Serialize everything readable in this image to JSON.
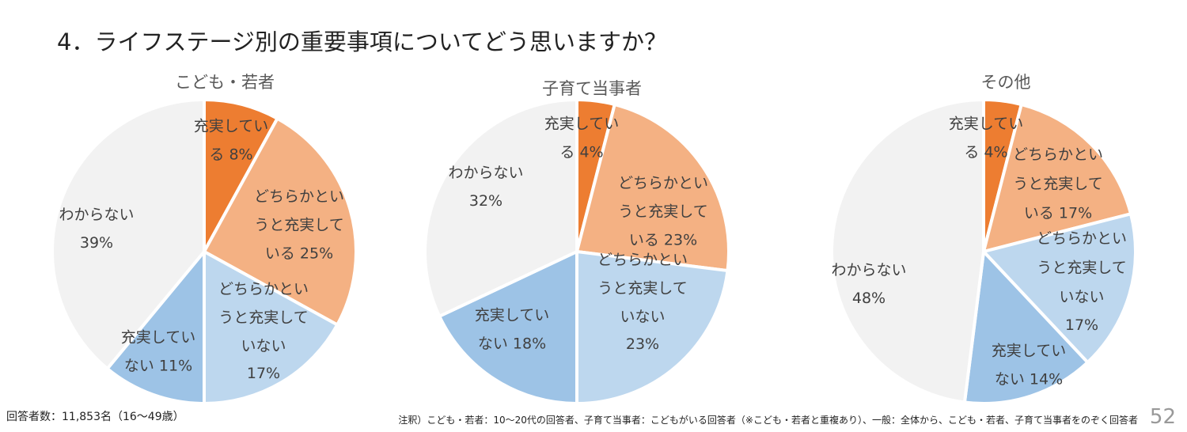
{
  "title": "4．ライフステージ別の重要事項についてどう思いますか？",
  "colors": {
    "satisfied": "#ED7D31",
    "somewhat_satisfied": "#F4B183",
    "somewhat_not_satisfied": "#BDD7EE",
    "not_satisfied": "#9DC3E6",
    "unknown": "#F2F2F2"
  },
  "chart_data": [
    {
      "type": "pie",
      "title": "こども・若者",
      "categories": [
        "充実している",
        "どちらかというと充実している",
        "どちらかというと充実していない",
        "充実していない",
        "わからない"
      ],
      "values": [
        8,
        25,
        17,
        11,
        39
      ],
      "labels": [
        [
          "充実してい",
          "る 8%"
        ],
        [
          "どちらかとい",
          "うと充実して",
          "いる 25%"
        ],
        [
          "どちらかとい",
          "うと充実して",
          "いない",
          "17%"
        ],
        [
          "充実してい",
          "ない 11%"
        ],
        [
          "わからない",
          "39%"
        ]
      ]
    },
    {
      "type": "pie",
      "title": "子育て当事者",
      "categories": [
        "充実している",
        "どちらかというと充実している",
        "どちらかというと充実していない",
        "充実していない",
        "わからない"
      ],
      "values": [
        4,
        23,
        23,
        18,
        32
      ],
      "labels": [
        [
          "充実してい",
          "る 4%"
        ],
        [
          "どちらかとい",
          "うと充実して",
          "いる 23%"
        ],
        [
          "どちらかとい",
          "うと充実して",
          "いない",
          "23%"
        ],
        [
          "充実してい",
          "ない 18%"
        ],
        [
          "わからない",
          "32%"
        ]
      ]
    },
    {
      "type": "pie",
      "title": "その他",
      "categories": [
        "充実している",
        "どちらかというと充実している",
        "どちらかというと充実していない",
        "充実していない",
        "わからない"
      ],
      "values": [
        4,
        17,
        17,
        14,
        48
      ],
      "labels": [
        [
          "充実してい",
          "る 4%"
        ],
        [
          "どちらかとい",
          "うと充実して",
          "いる 17%"
        ],
        [
          "どちらかとい",
          "うと充実して",
          "いない",
          "17%"
        ],
        [
          "充実してい",
          "ない 14%"
        ],
        [
          "わからない",
          "48%"
        ]
      ]
    }
  ],
  "footer": {
    "respondents": "回答者数：11,853名（16～49歳）",
    "note": "注釈）こども・若者：10～20代の回答者、子育て当事者：こどもがいる回答者（※こども・若者と重複あり）、一般：全体から、こども・若者、子育て当事者をのぞく回答者",
    "page": "52"
  }
}
